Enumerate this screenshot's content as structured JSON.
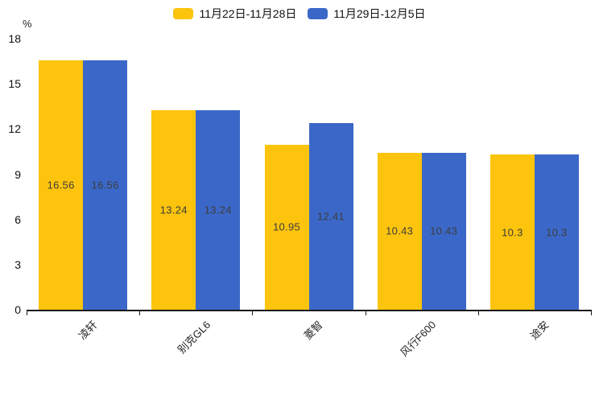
{
  "chart_data": {
    "type": "bar",
    "title": "",
    "unit": "%",
    "categories": [
      "凌轩",
      "别克GL6",
      "菱智",
      "风行F600",
      "途安"
    ],
    "series": [
      {
        "name": "11月22日-11月28日",
        "color": "#FCC40D",
        "values": [
          16.56,
          13.24,
          10.95,
          10.43,
          10.3
        ]
      },
      {
        "name": "11月29日-12月5日",
        "color": "#3B68C8",
        "values": [
          16.56,
          13.24,
          12.41,
          10.43,
          10.3
        ]
      }
    ],
    "xlabel": "",
    "ylabel": "%",
    "ylim": [
      0,
      18
    ],
    "yticks": [
      0,
      3,
      6,
      9,
      12,
      15,
      18
    ],
    "grid": false,
    "legend_position": "top-center",
    "value_labels": "inside-center",
    "colors": {
      "series1": "#FCC40D",
      "series2": "#3B68C8",
      "axis": "#1a1a1a",
      "value_label_text": "#3d3d3d",
      "axis_text": "#111111",
      "background": "#ffffff"
    }
  }
}
